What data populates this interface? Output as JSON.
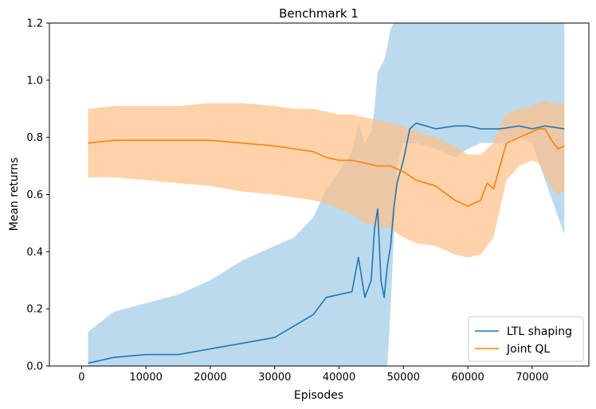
{
  "chart_data": {
    "type": "line",
    "title": "Benchmark 1",
    "xlabel": "Episodes",
    "ylabel": "Mean returns",
    "xlim": [
      -5000,
      78800
    ],
    "ylim": [
      0,
      1.2
    ],
    "xticks": [
      0,
      10000,
      20000,
      30000,
      40000,
      50000,
      60000,
      70000
    ],
    "xtick_labels": [
      "0",
      "10000",
      "20000",
      "30000",
      "40000",
      "50000",
      "60000",
      "70000"
    ],
    "yticks": [
      0.0,
      0.2,
      0.4,
      0.6,
      0.8,
      1.0,
      1.2
    ],
    "ytick_labels": [
      "0.0",
      "0.2",
      "0.4",
      "0.6",
      "0.8",
      "1.0",
      "1.2"
    ],
    "grid": false,
    "legend_position": "lower-right",
    "series": [
      {
        "name": "LTL shaping",
        "color": "#1f77b4",
        "band_color": "#9ecae7",
        "x": [
          1000,
          5000,
          10000,
          15000,
          20000,
          25000,
          30000,
          33000,
          36000,
          38000,
          40000,
          42000,
          43000,
          44000,
          45000,
          45500,
          46000,
          46500,
          47000,
          47500,
          48000,
          48500,
          49000,
          50000,
          51000,
          52000,
          55000,
          58000,
          60000,
          62000,
          65000,
          68000,
          70000,
          72000,
          75000
        ],
        "y": [
          0.01,
          0.03,
          0.04,
          0.04,
          0.06,
          0.08,
          0.1,
          0.14,
          0.18,
          0.24,
          0.25,
          0.26,
          0.38,
          0.24,
          0.3,
          0.48,
          0.55,
          0.3,
          0.24,
          0.35,
          0.42,
          0.55,
          0.64,
          0.72,
          0.83,
          0.85,
          0.83,
          0.84,
          0.84,
          0.83,
          0.83,
          0.84,
          0.83,
          0.84,
          0.83
        ],
        "upper": [
          0.12,
          0.19,
          0.22,
          0.25,
          0.3,
          0.37,
          0.42,
          0.45,
          0.52,
          0.62,
          0.68,
          0.75,
          0.85,
          0.78,
          0.82,
          0.9,
          1.03,
          1.05,
          1.07,
          1.12,
          1.18,
          1.2,
          1.2,
          1.2,
          1.2,
          1.2,
          1.2,
          1.2,
          1.2,
          1.2,
          1.2,
          1.2,
          1.2,
          1.2,
          1.2
        ],
        "lower": [
          0.0,
          0.0,
          0.0,
          0.0,
          0.0,
          0.0,
          0.0,
          0.0,
          0.0,
          0.0,
          0.0,
          0.0,
          0.0,
          0.0,
          0.0,
          0.0,
          0.0,
          0.0,
          0.0,
          0.0,
          0.2,
          0.45,
          0.7,
          0.78,
          0.78,
          0.78,
          0.76,
          0.73,
          0.76,
          0.78,
          0.78,
          0.8,
          0.78,
          0.65,
          0.46
        ]
      },
      {
        "name": "Joint QL",
        "color": "#ff7f0e",
        "band_color": "#ffbf86",
        "x": [
          1000,
          5000,
          10000,
          15000,
          20000,
          25000,
          30000,
          33000,
          36000,
          38000,
          40000,
          42000,
          44000,
          46000,
          48000,
          50000,
          52000,
          55000,
          58000,
          60000,
          62000,
          63000,
          64000,
          65000,
          66000,
          68000,
          70000,
          71000,
          72000,
          73000,
          74000,
          75000
        ],
        "y": [
          0.78,
          0.79,
          0.79,
          0.79,
          0.79,
          0.78,
          0.77,
          0.76,
          0.75,
          0.73,
          0.72,
          0.72,
          0.71,
          0.7,
          0.7,
          0.68,
          0.65,
          0.63,
          0.58,
          0.56,
          0.58,
          0.64,
          0.62,
          0.7,
          0.78,
          0.8,
          0.82,
          0.83,
          0.83,
          0.79,
          0.76,
          0.77
        ],
        "upper": [
          0.9,
          0.91,
          0.91,
          0.91,
          0.92,
          0.92,
          0.91,
          0.9,
          0.9,
          0.89,
          0.88,
          0.88,
          0.87,
          0.86,
          0.85,
          0.84,
          0.82,
          0.8,
          0.77,
          0.74,
          0.74,
          0.76,
          0.78,
          0.84,
          0.88,
          0.9,
          0.91,
          0.92,
          0.93,
          0.92,
          0.92,
          0.92
        ],
        "lower": [
          0.66,
          0.66,
          0.65,
          0.64,
          0.63,
          0.61,
          0.6,
          0.59,
          0.58,
          0.57,
          0.55,
          0.53,
          0.5,
          0.49,
          0.48,
          0.45,
          0.43,
          0.42,
          0.39,
          0.38,
          0.39,
          0.42,
          0.45,
          0.55,
          0.65,
          0.7,
          0.72,
          0.71,
          0.67,
          0.62,
          0.6,
          0.61
        ]
      }
    ]
  }
}
